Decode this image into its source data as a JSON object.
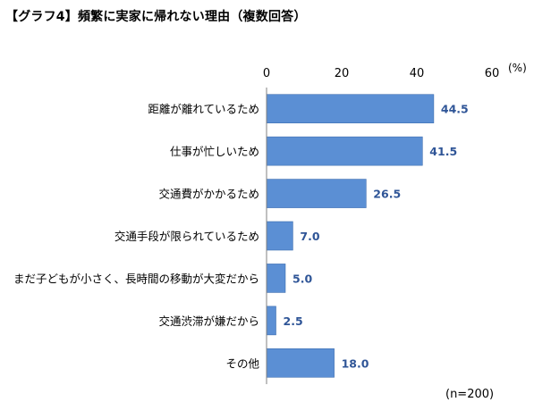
{
  "title": "【グラフ4】頻繁に実家に帰れない理由（複数回答）",
  "note": "(n=200)",
  "colors": {
    "bar": "#5b8fd4",
    "bar_stroke": "#3f6fb0",
    "value_label": "#2f5597",
    "axis": "#808080"
  },
  "chart_data": {
    "type": "bar",
    "orientation": "horizontal",
    "title": "【グラフ4】頻繁に実家に帰れない理由（複数回答）",
    "xlabel": "",
    "ylabel": "",
    "unit": "(%)",
    "xlim": [
      0,
      60
    ],
    "xticks": [
      0,
      20,
      40,
      60
    ],
    "xtick_labels": [
      "0",
      "20",
      "40",
      "60"
    ],
    "tick_position": "top",
    "grid": false,
    "categories": [
      "距離が離れているため",
      "仕事が忙しいため",
      "交通費がかかるため",
      "交通手段が限られているため",
      "まだ子どもが小さく、長時間の移動が大変だから",
      "交通渋滞が嫌だから",
      "その他"
    ],
    "values": [
      44.5,
      41.5,
      26.5,
      7.0,
      5.0,
      2.5,
      18.0
    ],
    "value_labels": [
      "44.5",
      "41.5",
      "26.5",
      "7.0",
      "5.0",
      "2.5",
      "18.0"
    ]
  }
}
